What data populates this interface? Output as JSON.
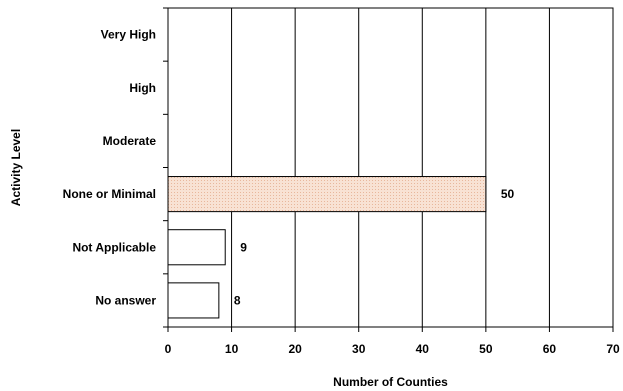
{
  "chart_data": {
    "type": "bar",
    "orientation": "horizontal",
    "categories": [
      "Very High",
      "High",
      "Moderate",
      "None or Minimal",
      "Not Applicable",
      "No answer"
    ],
    "values": [
      null,
      null,
      null,
      50,
      9,
      8
    ],
    "data_labels": [
      "",
      "",
      "",
      "50",
      "9",
      "8"
    ],
    "xlabel": "Number of Counties",
    "ylabel": "Activity Level",
    "xlim": [
      0,
      70
    ],
    "xticks": [
      0,
      10,
      20,
      30,
      40,
      50,
      60,
      70
    ],
    "xtick_labels": [
      "0",
      "10",
      "20",
      "30",
      "40",
      "50",
      "60",
      "70"
    ],
    "grid": "vertical",
    "legend": "none",
    "colors": {
      "highlight_fill": "#f8e2d4",
      "highlight_dot": "#e8b79c",
      "plain_fill": "#ffffff",
      "stroke": "#000000"
    },
    "highlight_category": "None or Minimal"
  }
}
